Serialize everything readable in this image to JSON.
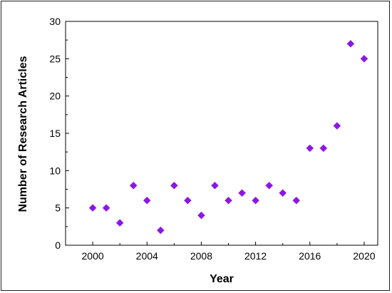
{
  "chart_data": {
    "type": "scatter",
    "title": "",
    "xlabel": "Year",
    "ylabel": "Number of Research Articles",
    "xlim": [
      1998,
      2021
    ],
    "ylim": [
      0,
      30
    ],
    "x_ticks": [
      2000,
      2004,
      2008,
      2012,
      2016,
      2020
    ],
    "x_ticks_minor": [
      2002,
      2006,
      2010,
      2014,
      2018
    ],
    "y_ticks": [
      0,
      5,
      10,
      15,
      20,
      25,
      30
    ],
    "grid": false,
    "marker": "diamond",
    "marker_color": "#8B17E6",
    "points": [
      {
        "x": 2000,
        "y": 5
      },
      {
        "x": 2001,
        "y": 5
      },
      {
        "x": 2002,
        "y": 3
      },
      {
        "x": 2003,
        "y": 8
      },
      {
        "x": 2004,
        "y": 6
      },
      {
        "x": 2005,
        "y": 2
      },
      {
        "x": 2006,
        "y": 8
      },
      {
        "x": 2007,
        "y": 6
      },
      {
        "x": 2008,
        "y": 4
      },
      {
        "x": 2009,
        "y": 8
      },
      {
        "x": 2010,
        "y": 6
      },
      {
        "x": 2011,
        "y": 7
      },
      {
        "x": 2012,
        "y": 6
      },
      {
        "x": 2013,
        "y": 8
      },
      {
        "x": 2014,
        "y": 7
      },
      {
        "x": 2015,
        "y": 6
      },
      {
        "x": 2016,
        "y": 13
      },
      {
        "x": 2017,
        "y": 13
      },
      {
        "x": 2018,
        "y": 16
      },
      {
        "x": 2019,
        "y": 27
      },
      {
        "x": 2020,
        "y": 25
      }
    ]
  }
}
